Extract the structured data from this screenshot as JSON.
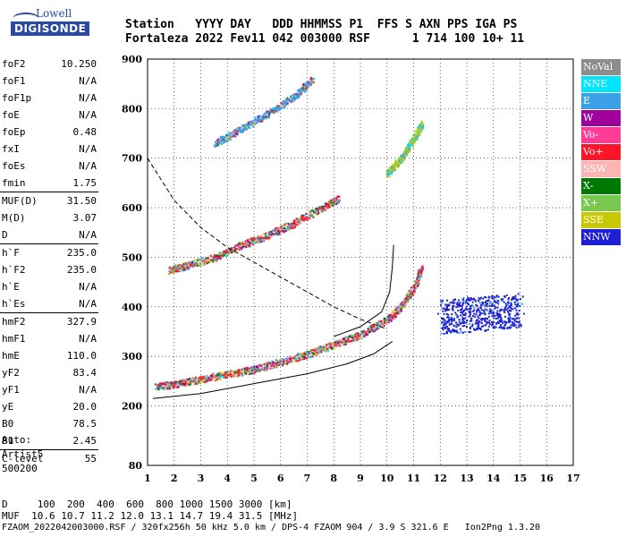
{
  "logo": {
    "line1": "Lowell",
    "line2": "DIGISONDE"
  },
  "header": {
    "row1": "Station   YYYY DAY   DDD HHMMSS P1  FFS S AXN PPS IGA PS",
    "row2": "Fortaleza 2022 Fev11 042 003000 RSF      1 714 100 10+ 11"
  },
  "params": {
    "group1": [
      {
        "k": "foF2",
        "v": "10.250"
      },
      {
        "k": "foF1",
        "v": "N/A"
      },
      {
        "k": "foF1p",
        "v": "N/A"
      },
      {
        "k": "foE",
        "v": "N/A"
      },
      {
        "k": "foEp",
        "v": "0.48"
      },
      {
        "k": "fxI",
        "v": "N/A"
      },
      {
        "k": "foEs",
        "v": "N/A"
      },
      {
        "k": "fmin",
        "v": "1.75"
      }
    ],
    "group2": [
      {
        "k": "MUF(D)",
        "v": "31.50"
      },
      {
        "k": "M(D)",
        "v": "3.07"
      },
      {
        "k": "D",
        "v": "N/A"
      }
    ],
    "group3": [
      {
        "k": "h`F",
        "v": "235.0"
      },
      {
        "k": "h`F2",
        "v": "235.0"
      },
      {
        "k": "h`E",
        "v": "N/A"
      },
      {
        "k": "h`Es",
        "v": "N/A"
      }
    ],
    "group4": [
      {
        "k": "hmF2",
        "v": "327.9"
      },
      {
        "k": "hmF1",
        "v": "N/A"
      },
      {
        "k": "hmE",
        "v": "110.0"
      },
      {
        "k": "yF2",
        "v": "83.4"
      },
      {
        "k": "yF1",
        "v": "N/A"
      },
      {
        "k": "yE",
        "v": "20.0"
      },
      {
        "k": "B0",
        "v": "78.5"
      },
      {
        "k": "B1",
        "v": "2.45"
      }
    ],
    "group5": [
      {
        "k": "C-level",
        "v": "55"
      }
    ]
  },
  "auto": {
    "line1": "Auto:",
    "line2": "Artist5",
    "line3": "500200"
  },
  "legend": [
    {
      "label": "NoVal",
      "color": "#8c8c8c"
    },
    {
      "label": "NNE",
      "color": "#00e5ff"
    },
    {
      "label": "E",
      "color": "#3ba0e6"
    },
    {
      "label": "W",
      "color": "#a0009c"
    },
    {
      "label": "Vo-",
      "color": "#ff3c96"
    },
    {
      "label": "Vo+",
      "color": "#ff1428"
    },
    {
      "label": "SSW",
      "color": "#ffb4b4"
    },
    {
      "label": "X-",
      "color": "#007800"
    },
    {
      "label": "X+",
      "color": "#78c850"
    },
    {
      "label": "SSE",
      "color": "#c8c800"
    },
    {
      "label": "NNW",
      "color": "#1e1ed2"
    }
  ],
  "chart_data": {
    "type": "scatter",
    "x_ticks": [
      "1",
      "2",
      "3",
      "4",
      "5",
      "6",
      "7",
      "8",
      "9",
      "10",
      "11",
      "12",
      "13",
      "14",
      "15",
      "16",
      "17"
    ],
    "y_ticks": [
      "80",
      "200",
      "300",
      "400",
      "500",
      "600",
      "700",
      "800",
      "900"
    ],
    "xlim": [
      1,
      17
    ],
    "ylim": [
      80,
      900
    ],
    "traces": [
      {
        "mode": "Vo+",
        "points": [
          [
            1.3,
            240
          ],
          [
            2,
            245
          ],
          [
            3,
            255
          ],
          [
            4,
            265
          ],
          [
            5,
            275
          ],
          [
            6,
            290
          ],
          [
            7,
            305
          ],
          [
            8,
            325
          ],
          [
            9,
            345
          ],
          [
            10,
            375
          ],
          [
            10.5,
            400
          ],
          [
            11,
            440
          ],
          [
            11.3,
            480
          ]
        ]
      },
      {
        "mode": "Vo+",
        "points": [
          [
            1.8,
            475
          ],
          [
            2.5,
            485
          ],
          [
            3.5,
            500
          ],
          [
            4.5,
            525
          ],
          [
            5.5,
            545
          ],
          [
            6.5,
            570
          ],
          [
            7.5,
            600
          ],
          [
            8.2,
            620
          ]
        ]
      },
      {
        "mode": "E",
        "points": [
          [
            3.5,
            730
          ],
          [
            4.5,
            760
          ],
          [
            5.5,
            790
          ],
          [
            6.5,
            825
          ],
          [
            7.2,
            860
          ]
        ]
      },
      {
        "mode": "SSE",
        "points": [
          [
            10,
            670
          ],
          [
            10.5,
            700
          ],
          [
            11,
            740
          ],
          [
            11.3,
            770
          ]
        ]
      },
      {
        "mode": "NNW",
        "points": [
          [
            12,
            380
          ],
          [
            13,
            385
          ],
          [
            14,
            390
          ],
          [
            15,
            395
          ]
        ]
      }
    ],
    "curves": {
      "solid_lower": [
        [
          1.2,
          215
        ],
        [
          3,
          225
        ],
        [
          5,
          245
        ],
        [
          7,
          265
        ],
        [
          8.5,
          285
        ],
        [
          9.5,
          305
        ],
        [
          10.2,
          330
        ]
      ],
      "solid_upper": [
        [
          8,
          340
        ],
        [
          9,
          360
        ],
        [
          9.8,
          390
        ],
        [
          10.1,
          430
        ],
        [
          10.2,
          480
        ],
        [
          10.25,
          525
        ]
      ],
      "dashed": [
        [
          1,
          700
        ],
        [
          2,
          615
        ],
        [
          3,
          560
        ],
        [
          4,
          520
        ],
        [
          5,
          490
        ],
        [
          6,
          460
        ],
        [
          7,
          430
        ],
        [
          8,
          400
        ],
        [
          9,
          375
        ],
        [
          10,
          355
        ]
      ]
    }
  },
  "footer": {
    "row1": "D     100  200  400  600  800 1000 1500 3000 [km]",
    "row2": "MUF  10.6 10.7 11.2 12.0 13.1 14.7 19.4 31.5 [MHz]",
    "row3": "FZAOM_2022042003000.RSF / 320fx256h 50 kHz 5.0 km / DPS-4 FZAOM 904 / 3.9 S 321.6 E   Ion2Png 1.3.20"
  }
}
